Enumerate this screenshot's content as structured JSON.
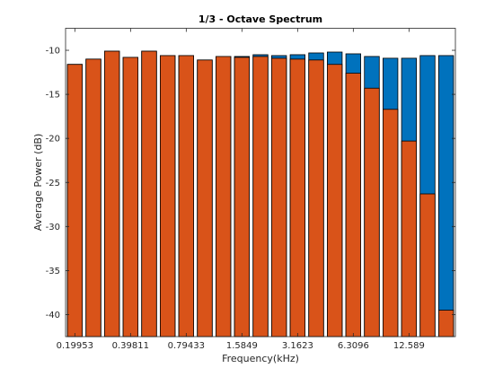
{
  "chart_data": {
    "type": "bar",
    "title": "1/3 - Octave Spectrum",
    "xlabel": "Frequency(kHz)",
    "ylabel": "Average Power (dB)",
    "ylim": [
      -42.5,
      -7.5
    ],
    "yticks": [
      -40,
      -35,
      -30,
      -25,
      -20,
      -15,
      -10
    ],
    "xtick_labels": [
      "0.19953",
      "0.39811",
      "0.79433",
      "1.5849",
      "3.1623",
      "6.3096",
      "12.589"
    ],
    "xtick_band_index": [
      0,
      3,
      6,
      9,
      12,
      15,
      18
    ],
    "grid": false,
    "legend": "none",
    "colors": {
      "back": "#0072BD",
      "front": "#D95319",
      "edge": "#000000"
    },
    "series": [
      {
        "values": [
          -11.6,
          -11.0,
          -10.1,
          -10.8,
          -10.1,
          -10.6,
          -10.6,
          -11.1,
          -10.7,
          -10.7,
          -10.5,
          -10.6,
          -10.5,
          -10.3,
          -10.2,
          -10.4,
          -10.7,
          -10.9,
          -10.9,
          -10.6,
          -10.6
        ]
      },
      {
        "values": [
          -11.6,
          -11.0,
          -10.1,
          -10.8,
          -10.1,
          -10.6,
          -10.6,
          -11.1,
          -10.7,
          -10.8,
          -10.7,
          -10.9,
          -11.0,
          -11.1,
          -11.6,
          -12.6,
          -14.3,
          -16.7,
          -20.3,
          -26.3,
          -39.5
        ]
      }
    ]
  }
}
